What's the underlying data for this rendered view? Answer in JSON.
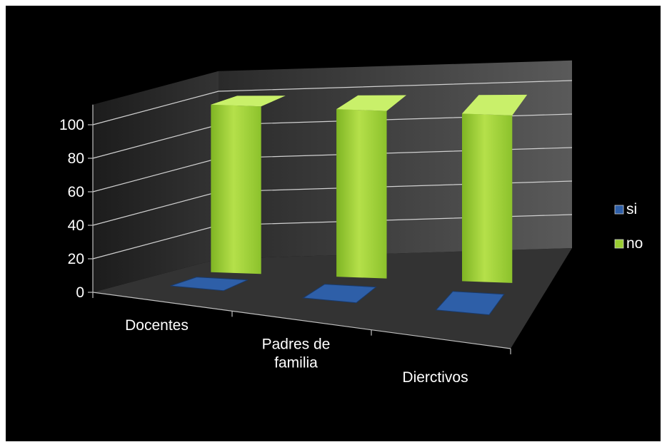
{
  "chart_data": {
    "type": "bar",
    "subtype": "3d-clustered-column",
    "categories": [
      "Docentes",
      "Padres de familia",
      "Dierctivos"
    ],
    "category_lines": [
      [
        "Docentes"
      ],
      [
        "Padres de",
        "familia"
      ],
      [
        "Dierctivos"
      ]
    ],
    "series": [
      {
        "name": "si",
        "values": [
          0,
          0,
          0
        ],
        "color": "#2E5FA8"
      },
      {
        "name": "no",
        "values": [
          100,
          100,
          100
        ],
        "color": "#9ACD32"
      }
    ],
    "yticks": [
      "0",
      "20",
      "40",
      "60",
      "80",
      "100"
    ],
    "ylim": [
      0,
      100
    ],
    "grid": true,
    "legend_position": "right",
    "background": "#000000",
    "wall_color": "#4A4A4A",
    "floor_color": "#333333"
  }
}
